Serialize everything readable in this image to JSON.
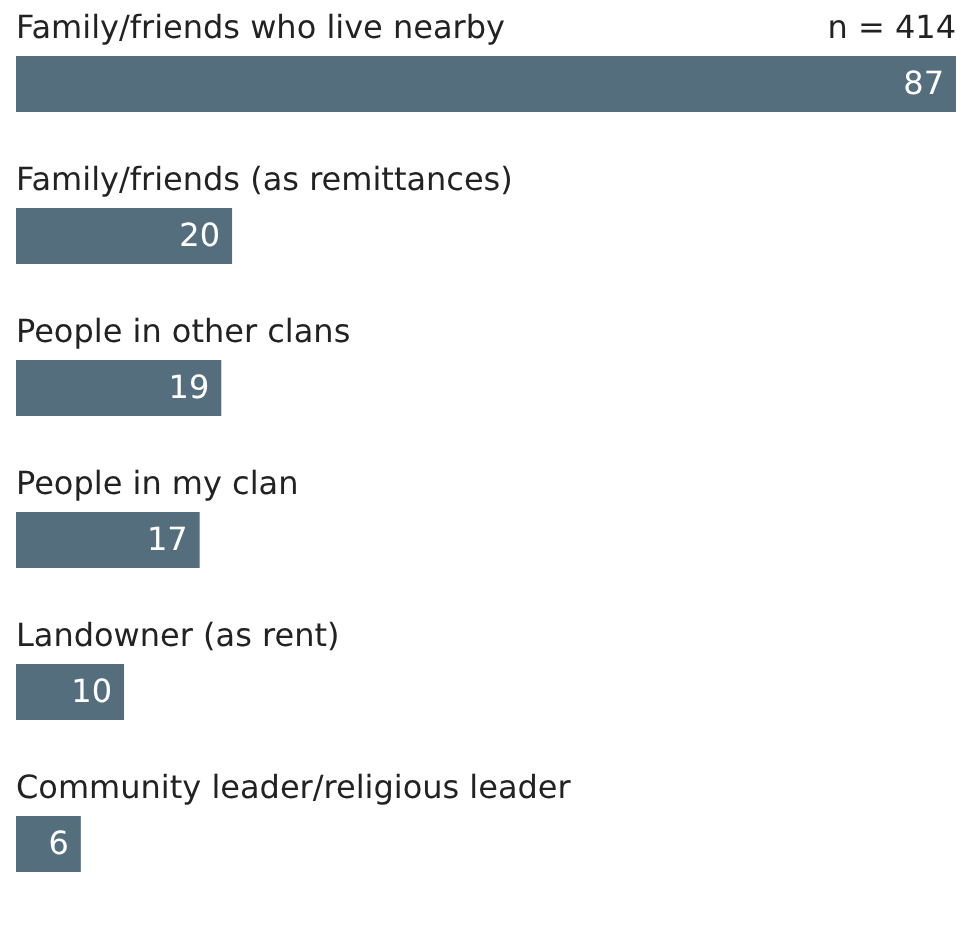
{
  "chart_data": {
    "type": "bar",
    "orientation": "horizontal",
    "categories": [
      "Family/friends who live nearby",
      "Family/friends (as remittances)",
      "People in other clans",
      "People in my clan",
      "Landowner (as rent)",
      "Community leader/religious leader"
    ],
    "values": [
      87,
      20,
      19,
      17,
      10,
      6
    ],
    "color": "#546e7e",
    "data_labels": true,
    "annotations": [
      "n = 414"
    ]
  }
}
